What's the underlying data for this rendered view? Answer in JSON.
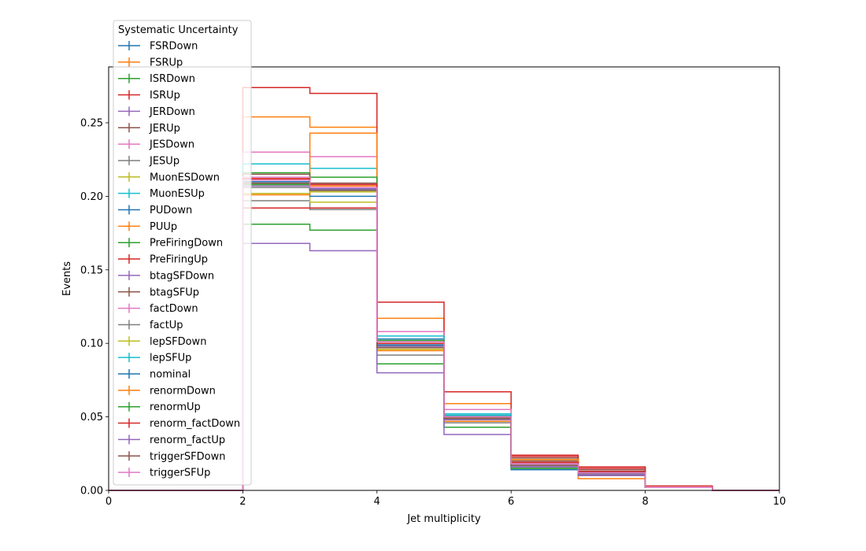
{
  "chart_data": {
    "type": "line",
    "drawstyle": "steps-post",
    "xlabel": "Jet multiplicity",
    "ylabel": "Events",
    "xlim": [
      0,
      10
    ],
    "ylim": [
      0,
      0.288
    ],
    "xticks": [
      "0",
      "2",
      "4",
      "6",
      "8",
      "10"
    ],
    "yticks": [
      "0.00",
      "0.05",
      "0.10",
      "0.15",
      "0.20",
      "0.25"
    ],
    "grid": false,
    "legend_title": "Systematic Uncertainty",
    "legend_placement": "upper-left, extending above the axes",
    "bin_edges": [
      0,
      1,
      2,
      3,
      4,
      5,
      6,
      7,
      8,
      9,
      10
    ],
    "series": [
      {
        "name": "FSRDown",
        "color": "#1f77b4",
        "values": [
          0,
          0,
          0.209,
          0.205,
          0.103,
          0.052,
          0.016,
          0.012,
          0.002,
          0
        ]
      },
      {
        "name": "FSRUp",
        "color": "#ff7f0e",
        "values": [
          0,
          0,
          0.254,
          0.247,
          0.117,
          0.059,
          0.02,
          0.008,
          0.002,
          0
        ]
      },
      {
        "name": "ISRDown",
        "color": "#2ca02c",
        "values": [
          0,
          0,
          0.181,
          0.177,
          0.086,
          0.043,
          0.015,
          0.011,
          0.002,
          0
        ]
      },
      {
        "name": "ISRUp",
        "color": "#d62728",
        "values": [
          0,
          0,
          0.274,
          0.27,
          0.128,
          0.067,
          0.024,
          0.016,
          0.003,
          0
        ]
      },
      {
        "name": "JERDown",
        "color": "#9467bd",
        "values": [
          0,
          0,
          0.212,
          0.208,
          0.1,
          0.05,
          0.018,
          0.012,
          0.002,
          0
        ]
      },
      {
        "name": "JERUp",
        "color": "#8c564b",
        "values": [
          0,
          0,
          0.21,
          0.207,
          0.099,
          0.049,
          0.02,
          0.012,
          0.002,
          0
        ]
      },
      {
        "name": "JESDown",
        "color": "#e377c2",
        "values": [
          0,
          0,
          0.23,
          0.227,
          0.108,
          0.055,
          0.019,
          0.012,
          0.002,
          0
        ]
      },
      {
        "name": "JESUp",
        "color": "#7f7f7f",
        "values": [
          0,
          0,
          0.197,
          0.191,
          0.092,
          0.046,
          0.016,
          0.012,
          0.002,
          0
        ]
      },
      {
        "name": "MuonESDown",
        "color": "#bcbd22",
        "values": [
          0,
          0,
          0.202,
          0.196,
          0.096,
          0.048,
          0.017,
          0.012,
          0.002,
          0
        ]
      },
      {
        "name": "MuonESUp",
        "color": "#17becf",
        "values": [
          0,
          0,
          0.222,
          0.219,
          0.105,
          0.052,
          0.018,
          0.012,
          0.002,
          0
        ]
      },
      {
        "name": "PUDown",
        "color": "#1f77b4",
        "values": [
          0,
          0,
          0.207,
          0.2,
          0.098,
          0.049,
          0.014,
          0.013,
          0.002,
          0
        ]
      },
      {
        "name": "PUUp",
        "color": "#ff7f0e",
        "values": [
          0,
          0,
          0.201,
          0.243,
          0.095,
          0.047,
          0.021,
          0.011,
          0.002,
          0
        ]
      },
      {
        "name": "PreFiringDown",
        "color": "#2ca02c",
        "values": [
          0,
          0,
          0.216,
          0.213,
          0.102,
          0.051,
          0.017,
          0.012,
          0.002,
          0
        ]
      },
      {
        "name": "PreFiringUp",
        "color": "#d62728",
        "values": [
          0,
          0,
          0.192,
          0.192,
          0.097,
          0.048,
          0.023,
          0.015,
          0.002,
          0
        ]
      },
      {
        "name": "btagSFDown",
        "color": "#9467bd",
        "values": [
          0,
          0,
          0.168,
          0.163,
          0.08,
          0.038,
          0.016,
          0.01,
          0.002,
          0
        ]
      },
      {
        "name": "btagSFUp",
        "color": "#8c564b",
        "values": [
          0,
          0,
          0.215,
          0.209,
          0.101,
          0.05,
          0.022,
          0.014,
          0.002,
          0
        ]
      },
      {
        "name": "factDown",
        "color": "#e377c2",
        "values": [
          0,
          0,
          0.213,
          0.208,
          0.101,
          0.05,
          0.018,
          0.012,
          0.002,
          0
        ]
      },
      {
        "name": "factUp",
        "color": "#7f7f7f",
        "values": [
          0,
          0,
          0.206,
          0.204,
          0.098,
          0.049,
          0.016,
          0.011,
          0.002,
          0
        ]
      },
      {
        "name": "lepSFDown",
        "color": "#bcbd22",
        "values": [
          0,
          0,
          0.208,
          0.203,
          0.097,
          0.049,
          0.017,
          0.011,
          0.002,
          0
        ]
      },
      {
        "name": "lepSFUp",
        "color": "#17becf",
        "values": [
          0,
          0,
          0.211,
          0.206,
          0.101,
          0.051,
          0.018,
          0.012,
          0.002,
          0
        ]
      },
      {
        "name": "nominal",
        "color": "#1f77b4",
        "values": [
          0,
          0,
          0.21,
          0.205,
          0.099,
          0.05,
          0.017,
          0.012,
          0.002,
          0
        ]
      },
      {
        "name": "renormDown",
        "color": "#ff7f0e",
        "values": [
          0,
          0,
          0.212,
          0.207,
          0.1,
          0.05,
          0.021,
          0.013,
          0.002,
          0
        ]
      },
      {
        "name": "renormUp",
        "color": "#2ca02c",
        "values": [
          0,
          0,
          0.208,
          0.204,
          0.098,
          0.049,
          0.015,
          0.011,
          0.002,
          0
        ]
      },
      {
        "name": "renorm_factDown",
        "color": "#d62728",
        "values": [
          0,
          0,
          0.212,
          0.208,
          0.1,
          0.05,
          0.019,
          0.013,
          0.002,
          0
        ]
      },
      {
        "name": "renorm_factUp",
        "color": "#9467bd",
        "values": [
          0,
          0,
          0.207,
          0.205,
          0.098,
          0.048,
          0.016,
          0.011,
          0.002,
          0
        ]
      },
      {
        "name": "triggerSFDown",
        "color": "#8c564b",
        "values": [
          0,
          0,
          0.209,
          0.204,
          0.097,
          0.049,
          0.017,
          0.012,
          0.002,
          0
        ]
      },
      {
        "name": "triggerSFUp",
        "color": "#e377c2",
        "values": [
          0,
          0,
          0.211,
          0.206,
          0.101,
          0.05,
          0.018,
          0.012,
          0.002,
          0
        ]
      }
    ]
  }
}
